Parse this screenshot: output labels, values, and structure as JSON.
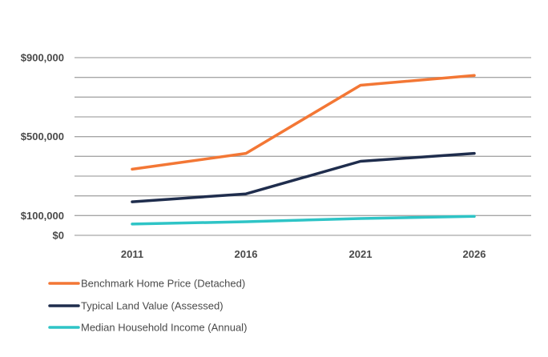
{
  "chart_data": {
    "type": "line",
    "title": "",
    "xlabel": "",
    "ylabel": "",
    "categories": [
      "2011",
      "2016",
      "2021",
      "2026"
    ],
    "ylim": [
      0,
      900000
    ],
    "y_tick_labels": [
      {
        "value": 900000,
        "label": "$900,000"
      },
      {
        "value": 500000,
        "label": "$500,000"
      },
      {
        "value": 100000,
        "label": "$100,000"
      },
      {
        "value": 0,
        "label": "$0"
      }
    ],
    "gridlines": [
      0,
      100000,
      200000,
      300000,
      400000,
      500000,
      600000,
      700000,
      800000,
      900000
    ],
    "grid": true,
    "legend_position": "bottom-left",
    "series": [
      {
        "name": "Benchmark Home Price (Detached)",
        "color": "#f37735",
        "values": [
          335000,
          415000,
          760000,
          810000
        ]
      },
      {
        "name": "Typical Land Value (Assessed)",
        "color": "#1f2d4d",
        "values": [
          170000,
          210000,
          375000,
          415000
        ]
      },
      {
        "name": "Median Household Income (Annual)",
        "color": "#2ec4c6",
        "values": [
          57000,
          69000,
          85000,
          96000
        ]
      }
    ]
  }
}
